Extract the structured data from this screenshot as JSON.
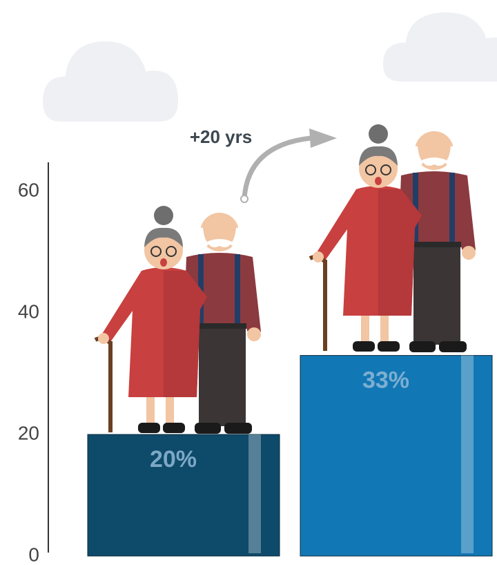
{
  "chart_data": {
    "type": "bar",
    "annotation": "+20 yrs",
    "categories": [
      null,
      null
    ],
    "values": [
      20,
      33
    ],
    "value_labels": [
      "20%",
      "33%"
    ],
    "colors": [
      "#0e4a6a",
      "#1277b5"
    ],
    "ylim": [
      0,
      65
    ],
    "yticks": [
      0,
      20,
      40,
      60
    ],
    "grid": false
  }
}
